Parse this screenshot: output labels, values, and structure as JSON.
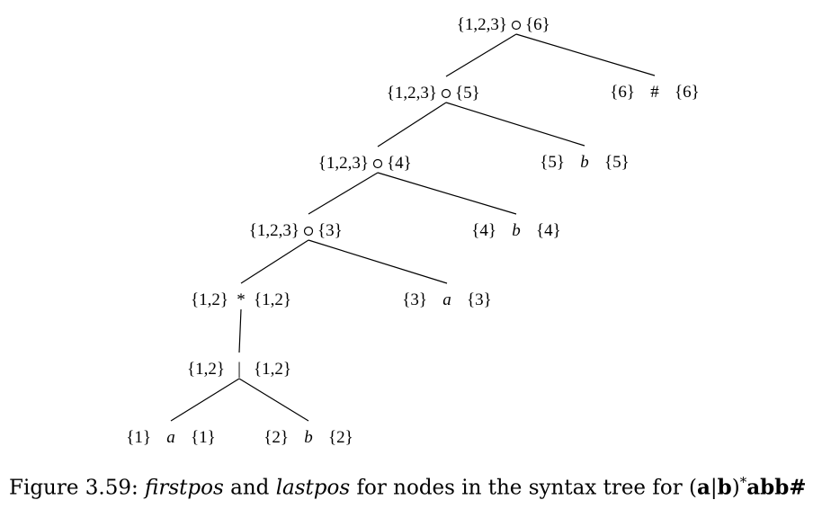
{
  "nodes": [
    {
      "id": "cat5",
      "kind": "cat",
      "symbol": "",
      "first": "{1,2,3}",
      "last": "{6}"
    },
    {
      "id": "cat4",
      "kind": "cat",
      "symbol": "",
      "first": "{1,2,3}",
      "last": "{5}"
    },
    {
      "id": "hash6",
      "kind": "leaf",
      "symbol": "#",
      "first": "{6}",
      "last": "{6}"
    },
    {
      "id": "cat3",
      "kind": "cat",
      "symbol": "",
      "first": "{1,2,3}",
      "last": "{4}"
    },
    {
      "id": "b5",
      "kind": "leaf",
      "symbol": "b",
      "first": "{5}",
      "last": "{5}"
    },
    {
      "id": "cat2",
      "kind": "cat",
      "symbol": "",
      "first": "{1,2,3}",
      "last": "{3}"
    },
    {
      "id": "b4",
      "kind": "leaf",
      "symbol": "b",
      "first": "{4}",
      "last": "{4}"
    },
    {
      "id": "star",
      "kind": "op",
      "symbol": "*",
      "first": "{1,2}",
      "last": "{1,2}"
    },
    {
      "id": "a3",
      "kind": "leaf",
      "symbol": "a",
      "first": "{3}",
      "last": "{3}"
    },
    {
      "id": "or",
      "kind": "op",
      "symbol": "|",
      "first": "{1,2}",
      "last": "{1,2}"
    },
    {
      "id": "a1",
      "kind": "leaf",
      "symbol": "a",
      "first": "{1}",
      "last": "{1}"
    },
    {
      "id": "b2",
      "kind": "leaf",
      "symbol": "b",
      "first": "{2}",
      "last": "{2}"
    }
  ],
  "edges": [
    [
      "cat5",
      "cat4"
    ],
    [
      "cat5",
      "hash6"
    ],
    [
      "cat4",
      "cat3"
    ],
    [
      "cat4",
      "b5"
    ],
    [
      "cat3",
      "cat2"
    ],
    [
      "cat3",
      "b4"
    ],
    [
      "cat2",
      "star"
    ],
    [
      "cat2",
      "a3"
    ],
    [
      "star",
      "or"
    ],
    [
      "or",
      "a1"
    ],
    [
      "or",
      "b2"
    ]
  ],
  "caption": {
    "prefix": "Figure 3.59: ",
    "term1": "firstpos",
    "and": " and ",
    "term2": "lastpos",
    "middle": " for nodes in the syntax tree for ",
    "regex_open": "(",
    "regex_a": "a",
    "regex_bar": "|",
    "regex_b": "b",
    "regex_close": ")",
    "regex_star": "*",
    "regex_tail": "abb#"
  }
}
